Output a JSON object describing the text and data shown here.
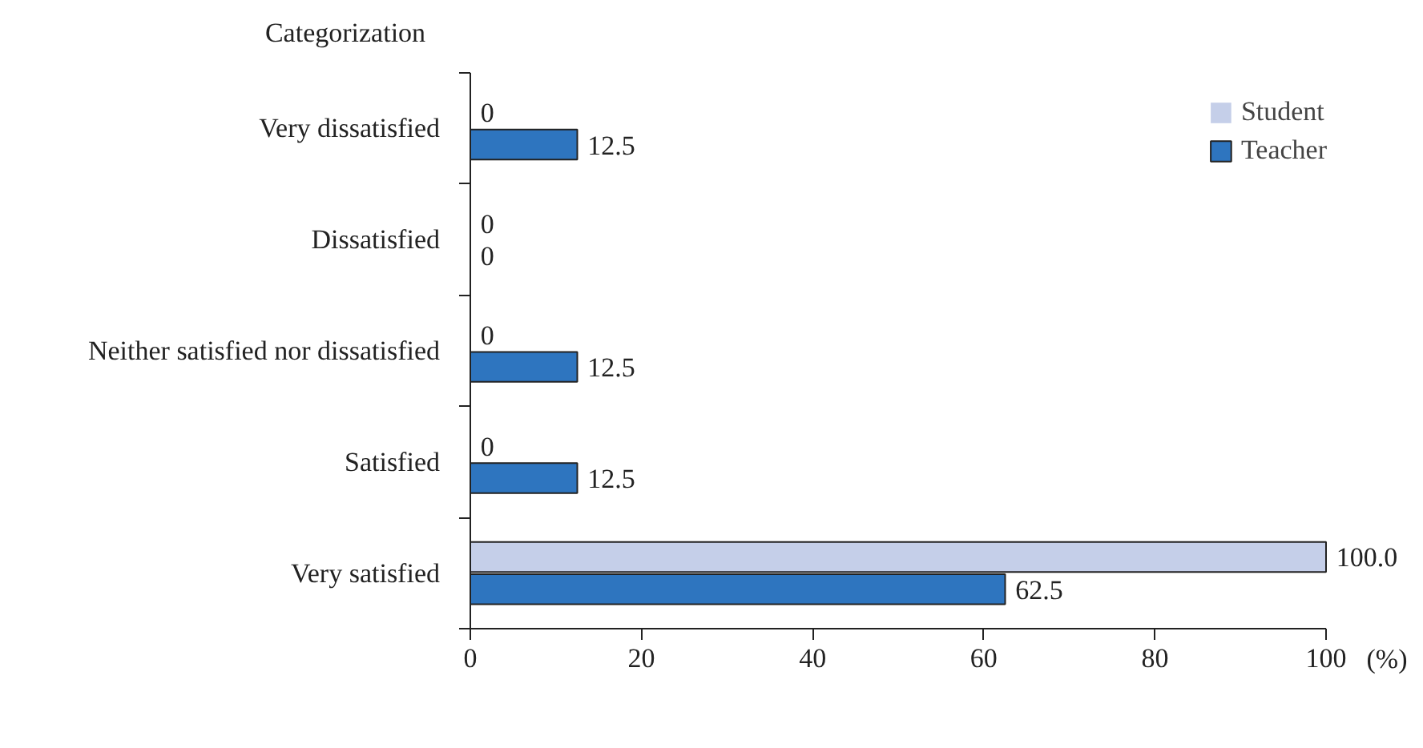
{
  "chart_data": {
    "type": "bar",
    "orientation": "horizontal",
    "ylabel": "Categorization",
    "xlabel": "(%)",
    "categories": [
      "Very dissatisfied",
      "Dissatisfied",
      "Neither satisfied nor dissatisfied",
      "Satisfied",
      "Very satisfied"
    ],
    "series": [
      {
        "name": "Student",
        "color": "#c5cfe9",
        "values": [
          0,
          0,
          0,
          0,
          100
        ],
        "value_labels": [
          "0",
          "0",
          "0",
          "0",
          "100.0"
        ]
      },
      {
        "name": "Teacher",
        "color": "#2e75bf",
        "values": [
          12.5,
          0,
          12.5,
          12.5,
          62.5
        ],
        "value_labels": [
          "12.5",
          "0",
          "12.5",
          "12.5",
          "62.5"
        ]
      }
    ],
    "xlim": [
      0,
      100
    ],
    "xticks": [
      0,
      20,
      40,
      60,
      80,
      100
    ],
    "grid": false,
    "legend": "top right"
  }
}
